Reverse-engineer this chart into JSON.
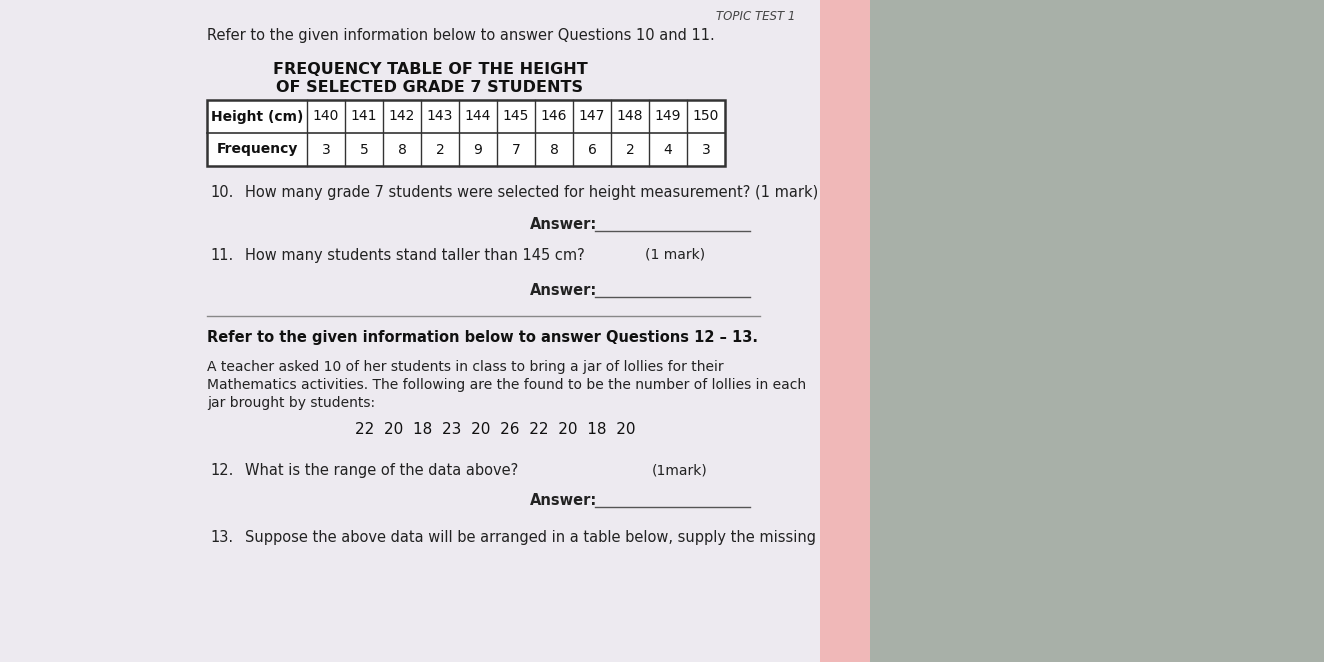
{
  "paper_color": "#edeaf0",
  "pink_color": "#f0b8b8",
  "cloth_color": "#a8b0a8",
  "title_line1": "FREQUENCY TABLE OF THE HEIGHT",
  "title_line2": "OF SELECTED GRADE 7 STUDENTS",
  "table_headers": [
    "Height (cm)",
    "140",
    "141",
    "142",
    "143",
    "144",
    "145",
    "146",
    "147",
    "148",
    "149",
    "150"
  ],
  "table_row2_label": "Frequency",
  "table_row2_values": [
    "3",
    "5",
    "8",
    "2",
    "9",
    "7",
    "8",
    "6",
    "2",
    "4",
    "3"
  ],
  "top_text": "Refer to the given information below to answer Questions 10 and 11.",
  "topic_label": "TOPIC TEST 1",
  "q10_num": "10.",
  "q10_text": "How many grade 7 students were selected for height measurement? (1 mark)",
  "q10_answer_label": "Answer:",
  "q11_num": "11.",
  "q11_text": "How many students stand taller than 145 cm?",
  "q11_mark": "(1 mark)",
  "q11_answer_label": "Answer:",
  "refer2_text": "Refer to the given information below to answer Questions 12 – 13.",
  "para_text_line1": "A teacher asked 10 of her students in class to bring a jar of lollies for their",
  "para_text_line2": "Mathematics activities. The following are the found to be the number of lollies in each",
  "para_text_line3": "jar brought by students:",
  "lollies_data": "22  20  18  23  20  26  22  20  18  20",
  "q12_num": "12.",
  "q12_text": "What is the range of the data above?",
  "q12_mark": "(1mark)",
  "q12_answer_label": "Answer:",
  "q13_num": "13.",
  "q13_text": "Suppose the above data will be arranged in a table below, supply the missing"
}
